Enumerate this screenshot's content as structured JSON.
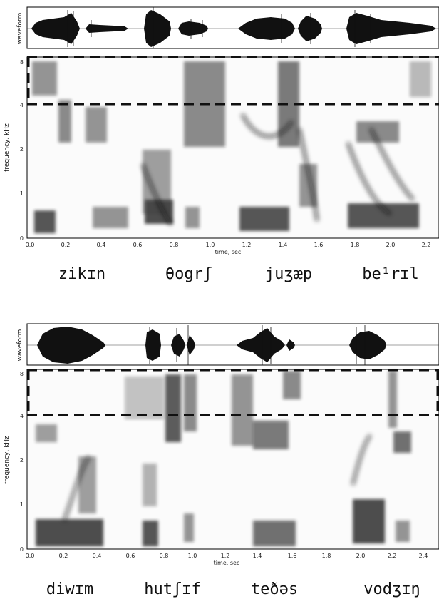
{
  "panels": [
    {
      "waveform_label": "waveform",
      "ylabel": "frequency, kHz",
      "xlabel": "time, sec",
      "y_ticks": [
        "8",
        "4",
        "2",
        "1",
        "0"
      ],
      "x_ticks": [
        "0.0",
        "0.2",
        "0.4",
        "0.6",
        "0.8",
        "1.0",
        "1.2",
        "1.4",
        "1.6",
        "1.8",
        "2.0",
        "2.2"
      ],
      "words": [
        "zikɪn",
        "θogrʃ",
        "juʒæp",
        "be¹rɪl"
      ]
    },
    {
      "waveform_label": "waveform",
      "ylabel": "frequency, kHz",
      "xlabel": "time, sec",
      "y_ticks": [
        "8",
        "4",
        "2",
        "1",
        "0"
      ],
      "x_ticks": [
        "0.0",
        "0.2",
        "0.4",
        "0.6",
        "0.8",
        "1.0",
        "1.2",
        "1.4",
        "1.6",
        "1.8",
        "2.0",
        "2.2",
        "2.4"
      ],
      "words": [
        "diwɪm",
        "hutʃɪf",
        "teðəs",
        "vodʒɪŋ"
      ]
    }
  ]
}
